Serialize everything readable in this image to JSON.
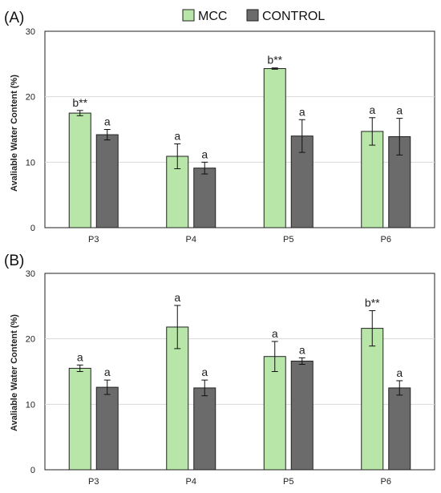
{
  "legend": {
    "items": [
      {
        "label": "MCC",
        "color": "#b8e5a8"
      },
      {
        "label": "CONTROL",
        "color": "#6b6b6b"
      }
    ]
  },
  "colors": {
    "mcc_fill": "#b8e5a8",
    "control_fill": "#6b6b6b",
    "bar_stroke": "#222222",
    "axis": "#333333",
    "grid": "#d9d9d9",
    "plot_border": "#222222"
  },
  "chart_data": [
    {
      "type": "bar",
      "panel_label": "(A)",
      "categories": [
        "P3",
        "P4",
        "P5",
        "P6"
      ],
      "ylabel": "Avaliable Water Content (%)",
      "ylim": [
        0,
        30
      ],
      "yticks": [
        0,
        10,
        20,
        30
      ],
      "grid": true,
      "legend": "top-center",
      "series": [
        {
          "name": "MCC",
          "values": [
            17.5,
            10.9,
            24.3,
            14.7
          ],
          "errors": [
            0.4,
            1.9,
            0.1,
            2.1
          ],
          "labels": [
            "b**",
            "a",
            "b**",
            "a"
          ]
        },
        {
          "name": "CONTROL",
          "values": [
            14.2,
            9.1,
            14.0,
            13.9
          ],
          "errors": [
            0.8,
            0.9,
            2.5,
            2.8
          ],
          "labels": [
            "a",
            "a",
            "a",
            "a"
          ]
        }
      ]
    },
    {
      "type": "bar",
      "panel_label": "(B)",
      "categories": [
        "P3",
        "P4",
        "P5",
        "P6"
      ],
      "ylabel": "Avaliable Water Content (%)",
      "ylim": [
        0,
        30
      ],
      "yticks": [
        0,
        10,
        20,
        30
      ],
      "grid": true,
      "series": [
        {
          "name": "MCC",
          "values": [
            15.5,
            21.8,
            17.3,
            21.6
          ],
          "errors": [
            0.5,
            3.3,
            2.3,
            2.7
          ],
          "labels": [
            "a",
            "a",
            "a",
            "b**"
          ]
        },
        {
          "name": "CONTROL",
          "values": [
            12.6,
            12.5,
            16.6,
            12.5
          ],
          "errors": [
            1.1,
            1.2,
            0.5,
            1.1
          ],
          "labels": [
            "a",
            "a",
            "a",
            "a"
          ]
        }
      ]
    }
  ]
}
